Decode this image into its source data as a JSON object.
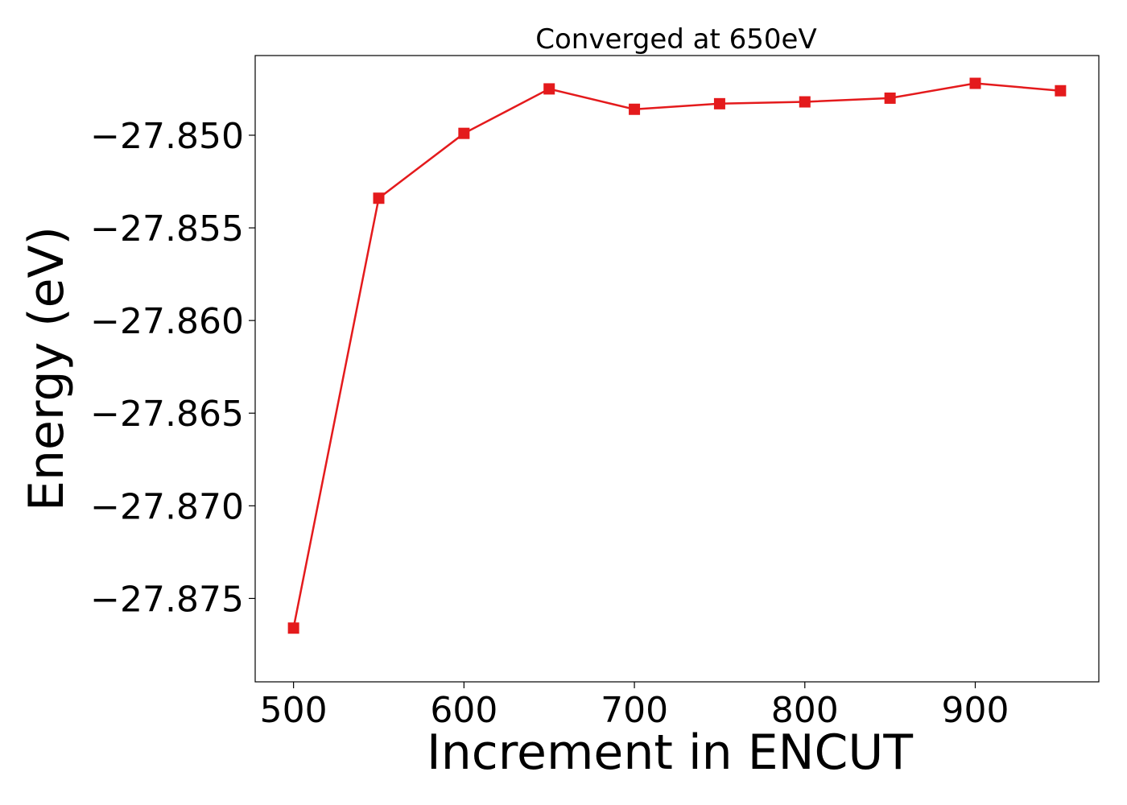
{
  "chart_data": {
    "type": "line",
    "title": "Converged at 650eV",
    "xlabel": "Increment in ENCUT",
    "ylabel": "Energy (eV)",
    "x": [
      500,
      550,
      600,
      650,
      700,
      750,
      800,
      850,
      900,
      950
    ],
    "series": [
      {
        "values": [
          -27.8766,
          -27.8534,
          -27.8499,
          -27.8475,
          -27.8486,
          -27.8483,
          -27.8482,
          -27.848,
          -27.8472,
          -27.8476
        ]
      }
    ],
    "xlim": [
      477.5,
      972.5
    ],
    "ylim": [
      -27.8795,
      -27.8457
    ],
    "xticks": [
      500,
      600,
      700,
      800,
      900
    ],
    "xtick_labels": [
      "500",
      "600",
      "700",
      "800",
      "900"
    ],
    "yticks": [
      -27.85,
      -27.855,
      -27.86,
      -27.865,
      -27.87,
      -27.875
    ],
    "ytick_labels": [
      "−27.850",
      "−27.855",
      "−27.860",
      "−27.865",
      "−27.870",
      "−27.875"
    ],
    "marker": "square",
    "line_color": "#e41a1c",
    "grid": false,
    "legend": "none"
  }
}
